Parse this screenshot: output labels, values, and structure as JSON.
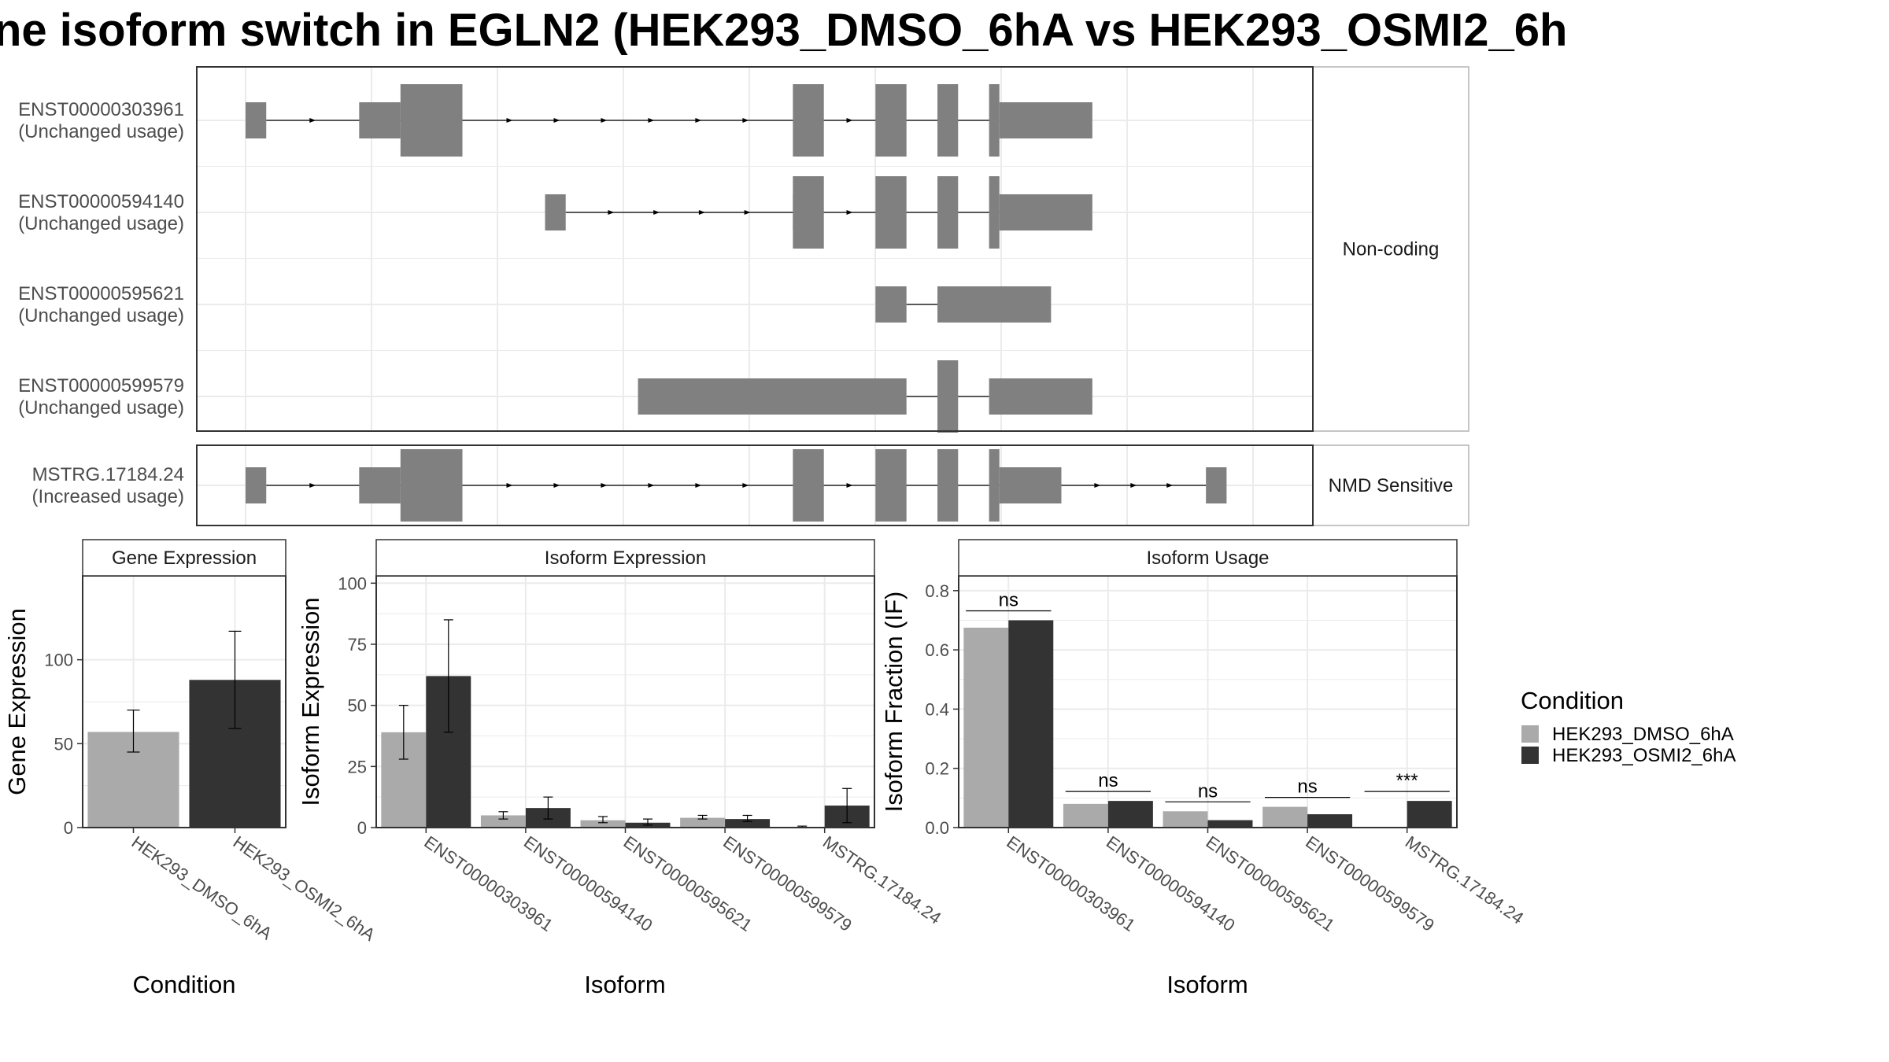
{
  "title": "ne isoform switch in EGLN2 (HEK293_DMSO_6hA vs HEK293_OSMI2_6h",
  "colors": {
    "exon": "#808080",
    "dmso": "#aaaaaa",
    "osmi2": "#333333",
    "grid": "#ebebeb",
    "border": "#333333",
    "strip_border": "#b3b3b3"
  },
  "structure": {
    "groups": [
      {
        "strip": "Non-coding",
        "transcripts": [
          {
            "id": "ENST00000303961",
            "usage": "(Unchanged usage)",
            "exons": [
              [
                0.0,
                0.02
              ],
              [
                0.11,
                0.15
              ],
              [
                0.15,
                0.21
              ],
              [
                0.53,
                0.56
              ],
              [
                0.61,
                0.64
              ],
              [
                0.67,
                0.69
              ],
              [
                0.72,
                0.73
              ],
              [
                0.73,
                0.82
              ]
            ]
          },
          {
            "id": "ENST00000594140",
            "usage": "(Unchanged usage)",
            "exons": [
              [
                0.29,
                0.31
              ],
              [
                0.53,
                0.53
              ],
              [
                0.53,
                0.56
              ],
              [
                0.61,
                0.64
              ],
              [
                0.67,
                0.69
              ],
              [
                0.72,
                0.73
              ],
              [
                0.73,
                0.82
              ]
            ]
          },
          {
            "id": "ENST00000595621",
            "usage": "(Unchanged usage)",
            "exons": [
              [
                0.61,
                0.64
              ],
              [
                0.67,
                0.78
              ]
            ]
          },
          {
            "id": "ENST00000599579",
            "usage": "(Unchanged usage)",
            "exons": [
              [
                0.38,
                0.64
              ],
              [
                0.67,
                0.69
              ],
              [
                0.72,
                0.82
              ]
            ]
          }
        ]
      },
      {
        "strip": "NMD Sensitive",
        "transcripts": [
          {
            "id": "MSTRG.17184.24",
            "usage": "(Increased usage)",
            "exons": [
              [
                0.0,
                0.02
              ],
              [
                0.11,
                0.15
              ],
              [
                0.15,
                0.21
              ],
              [
                0.53,
                0.56
              ],
              [
                0.61,
                0.64
              ],
              [
                0.67,
                0.69
              ],
              [
                0.72,
                0.73
              ],
              [
                0.73,
                0.79
              ],
              [
                0.93,
                0.95
              ]
            ]
          }
        ]
      }
    ]
  },
  "legend": {
    "title": "Condition",
    "items": [
      "HEK293_DMSO_6hA",
      "HEK293_OSMI2_6hA"
    ]
  },
  "chart_data": [
    {
      "type": "bar",
      "title": "Gene Expression",
      "xlabel": "Condition",
      "ylabel": "Gene Expression",
      "ylim": [
        0,
        150
      ],
      "yticks": [
        0,
        50,
        100
      ],
      "categories": [
        "HEK293_DMSO_6hA",
        "HEK293_OSMI2_6hA"
      ],
      "values": [
        57,
        88
      ],
      "error_low": [
        45,
        59
      ],
      "error_high": [
        70,
        117
      ]
    },
    {
      "type": "bar",
      "title": "Isoform Expression",
      "xlabel": "Isoform",
      "ylabel": "Isoform Expression",
      "ylim": [
        0,
        103
      ],
      "yticks": [
        0,
        25,
        50,
        75,
        100
      ],
      "categories": [
        "ENST00000303961",
        "ENST00000594140",
        "ENST00000595621",
        "ENST00000599579",
        "MSTRG.17184.24"
      ],
      "series": [
        {
          "name": "HEK293_DMSO_6hA",
          "values": [
            39,
            5,
            3,
            4,
            0.3
          ],
          "error_low": [
            28,
            3.5,
            2,
            3.5,
            0
          ],
          "error_high": [
            50,
            6.5,
            4.5,
            5,
            0.6
          ]
        },
        {
          "name": "HEK293_OSMI2_6hA",
          "values": [
            62,
            8,
            2,
            3.5,
            9
          ],
          "error_low": [
            39,
            3.5,
            1,
            2.5,
            2
          ],
          "error_high": [
            85,
            12.5,
            3.5,
            5,
            16
          ]
        }
      ]
    },
    {
      "type": "bar",
      "title": "Isoform Usage",
      "xlabel": "Isoform",
      "ylabel": "Isoform Fraction (IF)",
      "ylim": [
        0,
        0.85
      ],
      "yticks": [
        0.0,
        0.2,
        0.4,
        0.6,
        0.8
      ],
      "ytick_labels": [
        "0.0",
        "0.2",
        "0.4",
        "0.6",
        "0.8"
      ],
      "categories": [
        "ENST00000303961",
        "ENST00000594140",
        "ENST00000595621",
        "ENST00000599579",
        "MSTRG.17184.24"
      ],
      "series": [
        {
          "name": "HEK293_DMSO_6hA",
          "values": [
            0.675,
            0.08,
            0.055,
            0.07,
            0.0
          ]
        },
        {
          "name": "HEK293_OSMI2_6hA",
          "values": [
            0.7,
            0.09,
            0.025,
            0.045,
            0.09
          ]
        }
      ],
      "significance": [
        "ns",
        "ns",
        "ns",
        "ns",
        "***"
      ]
    }
  ]
}
